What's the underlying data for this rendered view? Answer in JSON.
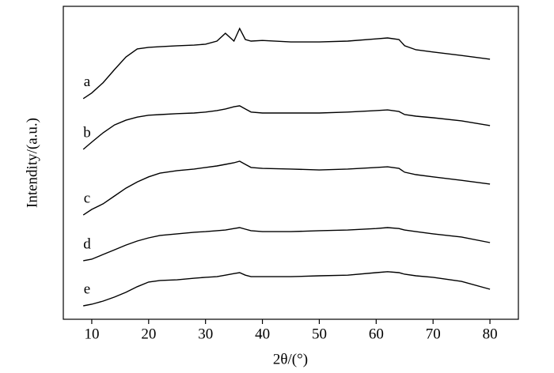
{
  "chart_data": {
    "type": "line",
    "x_label": "2θ/(°)",
    "y_label": "Intendity/(a.u.)",
    "xlim": [
      5,
      85
    ],
    "xticks": [
      10,
      20,
      30,
      40,
      50,
      60,
      70,
      80
    ],
    "ylim": [
      0,
      100
    ],
    "x": [
      8.5,
      10,
      12,
      14,
      16,
      18,
      20,
      22,
      25,
      28,
      30,
      32,
      33.5,
      35,
      36,
      37,
      38,
      40,
      45,
      50,
      55,
      60,
      62,
      64,
      65,
      67,
      70,
      75,
      80
    ],
    "series": [
      {
        "name": "a",
        "color": "#000000",
        "values": [
          70.5,
          72.3,
          75.6,
          79.8,
          83.8,
          86.4,
          86.9,
          87.1,
          87.4,
          87.6,
          87.9,
          88.9,
          91.4,
          88.9,
          92.9,
          89.4,
          88.9,
          89.1,
          88.6,
          88.6,
          88.9,
          89.6,
          89.9,
          89.4,
          87.4,
          86.1,
          85.4,
          84.3,
          83.1
        ]
      },
      {
        "name": "b",
        "color": "#000000",
        "values": [
          54.3,
          56.6,
          59.6,
          62.1,
          63.6,
          64.6,
          65.2,
          65.4,
          65.7,
          65.9,
          66.2,
          66.7,
          67.2,
          67.9,
          68.2,
          67.2,
          66.2,
          65.9,
          65.9,
          65.9,
          66.2,
          66.7,
          66.9,
          66.4,
          65.4,
          64.9,
          64.4,
          63.4,
          61.9
        ]
      },
      {
        "name": "c",
        "color": "#000000",
        "values": [
          33.3,
          35.1,
          36.9,
          39.4,
          41.9,
          43.9,
          45.5,
          46.7,
          47.5,
          48.0,
          48.5,
          49.0,
          49.5,
          50.0,
          50.5,
          49.5,
          48.5,
          48.2,
          48.0,
          47.7,
          48.0,
          48.5,
          48.7,
          48.2,
          47.0,
          46.2,
          45.5,
          44.4,
          43.2
        ]
      },
      {
        "name": "d",
        "color": "#000000",
        "values": [
          18.7,
          19.2,
          20.7,
          22.2,
          23.7,
          25.0,
          26.0,
          26.8,
          27.3,
          27.8,
          28.0,
          28.3,
          28.5,
          29.0,
          29.3,
          28.8,
          28.3,
          28.0,
          28.0,
          28.3,
          28.5,
          29.0,
          29.3,
          29.0,
          28.5,
          28.0,
          27.3,
          26.3,
          24.5
        ]
      },
      {
        "name": "e",
        "color": "#000000",
        "values": [
          4.3,
          4.8,
          5.8,
          7.1,
          8.6,
          10.4,
          11.9,
          12.4,
          12.6,
          13.1,
          13.4,
          13.6,
          14.1,
          14.6,
          14.9,
          14.1,
          13.6,
          13.6,
          13.6,
          13.9,
          14.1,
          14.9,
          15.2,
          14.9,
          14.4,
          13.9,
          13.4,
          12.1,
          9.6
        ]
      }
    ]
  }
}
